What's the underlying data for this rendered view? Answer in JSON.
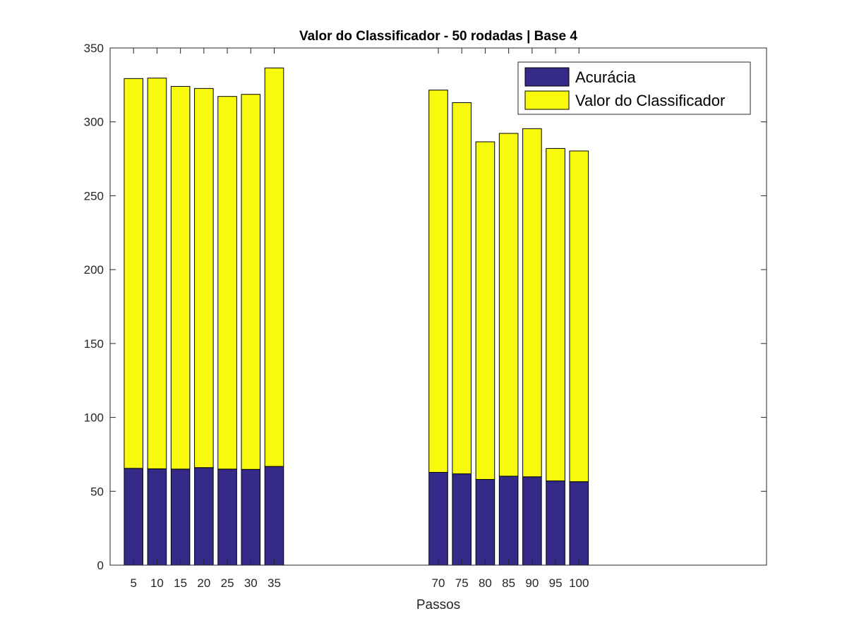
{
  "chart_data": {
    "type": "bar",
    "stacked": true,
    "title": "Valor do Classificador - 50 rodadas | Base 4",
    "xlabel": "Passos",
    "ylabel": "",
    "xlim": [
      -1,
      27
    ],
    "ylim": [
      0,
      350
    ],
    "yticks": [
      0,
      50,
      100,
      150,
      200,
      250,
      300,
      350
    ],
    "categories": [
      "5",
      "10",
      "15",
      "20",
      "25",
      "30",
      "35",
      "",
      "",
      "",
      "",
      "",
      "",
      "70",
      "75",
      "80",
      "85",
      "90",
      "95",
      "100"
    ],
    "series": [
      {
        "name": "Acurácia",
        "color": "#352a87",
        "values": [
          65.5,
          65.2,
          65.0,
          66.0,
          65.0,
          64.8,
          66.8,
          0,
          0,
          0,
          0,
          0,
          0,
          62.8,
          61.8,
          58.0,
          60.2,
          59.8,
          57.0,
          56.5
        ]
      },
      {
        "name": "Valor do Classificador",
        "color": "#f8fa0d",
        "values": [
          263.8,
          264.4,
          259.0,
          256.6,
          252.2,
          253.8,
          269.7,
          0,
          0,
          0,
          0,
          0,
          0,
          258.7,
          251.2,
          228.5,
          232.0,
          235.6,
          225.0,
          223.8
        ]
      }
    ],
    "grid": false,
    "legend_position": "top-right"
  }
}
